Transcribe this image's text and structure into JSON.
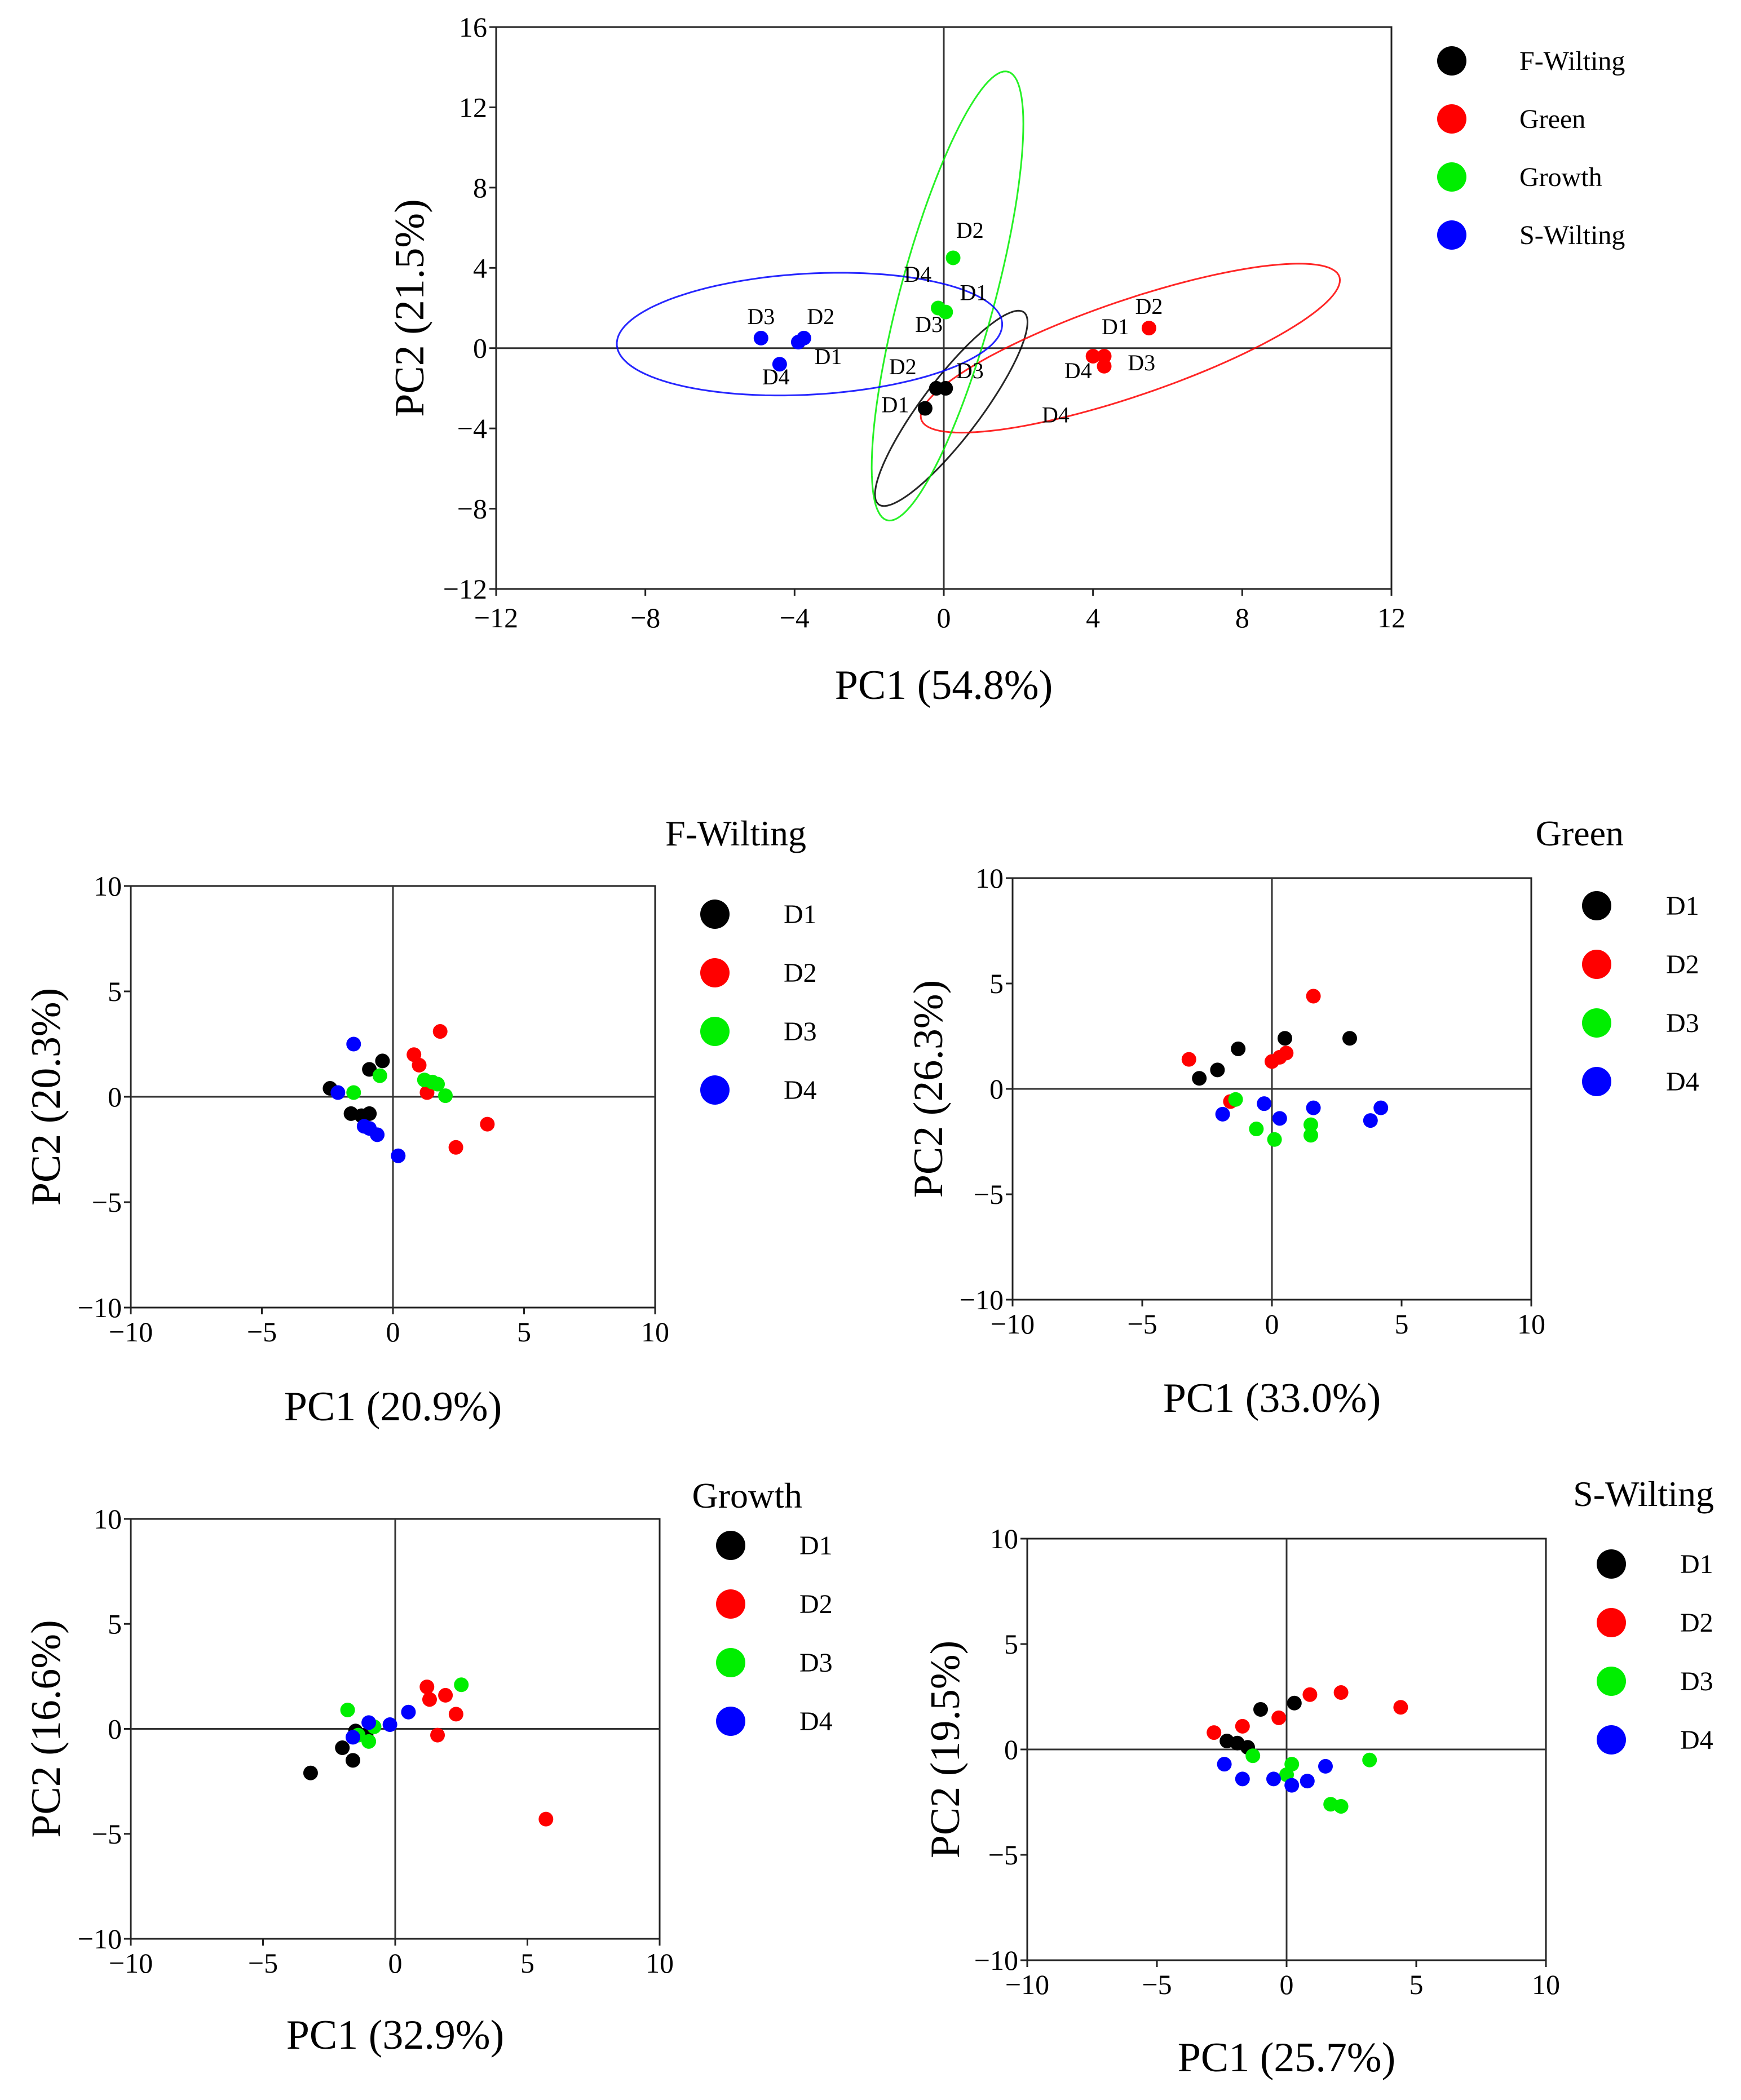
{
  "chart_data": [
    {
      "type": "scatter",
      "title": "",
      "xlabel": "PC1 (54.8%)",
      "ylabel": "PC2 (21.5%)",
      "xlim": [
        -12,
        12
      ],
      "ylim": [
        -12,
        16
      ],
      "xticks": [
        -12,
        -8,
        -4,
        0,
        4,
        8,
        12
      ],
      "yticks": [
        -12,
        -8,
        -4,
        0,
        4,
        8,
        12,
        16
      ],
      "tick_labels_x": [
        "−12",
        "−8",
        "−4",
        "0",
        "4",
        "8",
        "12"
      ],
      "tick_labels_y": [
        "−12",
        "−8",
        "−4",
        "0",
        "4",
        "8",
        "12",
        "16"
      ],
      "zero_lines": true,
      "legend_position": "right",
      "series": [
        {
          "name": "F-Wilting",
          "color": "#000000",
          "points": [
            {
              "x": -0.5,
              "y": -3.0
            },
            {
              "x": -0.2,
              "y": -2.0
            },
            {
              "x": 0.05,
              "y": -2.0
            }
          ],
          "labels": [
            {
              "text": "D1",
              "x": -1.3,
              "y": -3.2
            },
            {
              "text": "D2",
              "x": -1.1,
              "y": -1.3
            },
            {
              "text": "D3",
              "x": 0.7,
              "y": -1.5
            }
          ],
          "ellipse": {
            "cx": 0.2,
            "cy": -3.0,
            "rx": 5.2,
            "ry": 0.9,
            "angle": 69
          }
        },
        {
          "name": "Green",
          "color": "#ff0000",
          "points": [
            {
              "x": 4.0,
              "y": -0.4
            },
            {
              "x": 4.3,
              "y": -0.4
            },
            {
              "x": 4.3,
              "y": -0.9
            },
            {
              "x": 5.5,
              "y": 1.0
            }
          ],
          "labels": [
            {
              "text": "D1",
              "x": 4.6,
              "y": 0.7
            },
            {
              "text": "D2",
              "x": 5.5,
              "y": 1.7
            },
            {
              "text": "D3",
              "x": 5.3,
              "y": -1.1
            },
            {
              "text": "D4",
              "x": 3.6,
              "y": -1.5
            },
            {
              "text": "D4",
              "x": 3.0,
              "y": -3.7
            }
          ],
          "ellipse": {
            "cx": 5.0,
            "cy": 0.0,
            "rx": 6.7,
            "ry": 2.1,
            "angle": 35
          }
        },
        {
          "name": "Growth",
          "color": "#00ee00",
          "points": [
            {
              "x": 0.25,
              "y": 4.5
            },
            {
              "x": -0.15,
              "y": 2.0
            },
            {
              "x": 0.05,
              "y": 1.8
            }
          ],
          "labels": [
            {
              "text": "D2",
              "x": 0.7,
              "y": 5.5
            },
            {
              "text": "D4",
              "x": -0.7,
              "y": 3.3
            },
            {
              "text": "D1",
              "x": 0.8,
              "y": 2.4
            },
            {
              "text": "D3",
              "x": -0.4,
              "y": 0.8
            }
          ],
          "ellipse": {
            "cx": 0.1,
            "cy": 2.6,
            "rx": 11.3,
            "ry": 1.3,
            "angle": 82
          }
        },
        {
          "name": "S-Wilting",
          "color": "#0000ff",
          "points": [
            {
              "x": -4.9,
              "y": 0.5
            },
            {
              "x": -3.9,
              "y": 0.3
            },
            {
              "x": -3.75,
              "y": 0.5
            },
            {
              "x": -4.4,
              "y": -0.8
            }
          ],
          "labels": [
            {
              "text": "D3",
              "x": -4.9,
              "y": 1.2
            },
            {
              "text": "D2",
              "x": -3.3,
              "y": 1.2
            },
            {
              "text": "D1",
              "x": -3.1,
              "y": -0.8
            },
            {
              "text": "D4",
              "x": -4.5,
              "y": -1.8
            }
          ],
          "ellipse": {
            "cx": -3.6,
            "cy": 0.7,
            "rx": 5.2,
            "ry": 3.0,
            "angle": 8
          }
        }
      ]
    },
    {
      "type": "scatter",
      "title": "F-Wilting",
      "xlabel": "PC1 (20.9%)",
      "ylabel": "PC2 (20.3%)",
      "xlim": [
        -10,
        10
      ],
      "ylim": [
        -10,
        10
      ],
      "xticks": [
        -10,
        -5,
        0,
        5,
        10
      ],
      "yticks": [
        -10,
        -5,
        0,
        5,
        10
      ],
      "tick_labels_x": [
        "−10",
        "−5",
        "0",
        "5",
        "10"
      ],
      "tick_labels_y": [
        "−10",
        "−5",
        "0",
        "5",
        "10"
      ],
      "zero_lines": true,
      "legend_position": "right",
      "series": [
        {
          "name": "D1",
          "color": "#000000",
          "points": [
            {
              "x": -2.4,
              "y": 0.4
            },
            {
              "x": -1.6,
              "y": -0.8
            },
            {
              "x": -1.2,
              "y": -0.9
            },
            {
              "x": -0.9,
              "y": -0.8
            },
            {
              "x": -0.9,
              "y": 1.3
            },
            {
              "x": -0.4,
              "y": 1.7
            }
          ]
        },
        {
          "name": "D2",
          "color": "#ff0000",
          "points": [
            {
              "x": 0.8,
              "y": 2.0
            },
            {
              "x": 1.0,
              "y": 1.5
            },
            {
              "x": 1.3,
              "y": 0.2
            },
            {
              "x": 1.8,
              "y": 3.1
            },
            {
              "x": 2.4,
              "y": -2.4
            },
            {
              "x": 3.6,
              "y": -1.3
            }
          ]
        },
        {
          "name": "D3",
          "color": "#00ee00",
          "points": [
            {
              "x": -1.5,
              "y": 0.2
            },
            {
              "x": -0.5,
              "y": 1.0
            },
            {
              "x": 1.2,
              "y": 0.8
            },
            {
              "x": 1.5,
              "y": 0.7
            },
            {
              "x": 1.7,
              "y": 0.6
            },
            {
              "x": 2.0,
              "y": 0.05
            }
          ]
        },
        {
          "name": "D4",
          "color": "#0000ff",
          "points": [
            {
              "x": -2.1,
              "y": 0.2
            },
            {
              "x": -1.5,
              "y": 2.5
            },
            {
              "x": -1.1,
              "y": -1.4
            },
            {
              "x": -0.9,
              "y": -1.5
            },
            {
              "x": -0.6,
              "y": -1.8
            },
            {
              "x": 0.2,
              "y": -2.8
            }
          ]
        }
      ]
    },
    {
      "type": "scatter",
      "title": "Green",
      "xlabel": "PC1 (33.0%)",
      "ylabel": "PC2 (26.3%)",
      "xlim": [
        -10,
        10
      ],
      "ylim": [
        -10,
        10
      ],
      "xticks": [
        -10,
        -5,
        0,
        5,
        10
      ],
      "yticks": [
        -10,
        -5,
        0,
        5,
        10
      ],
      "tick_labels_x": [
        "−10",
        "−5",
        "0",
        "5",
        "10"
      ],
      "tick_labels_y": [
        "−10",
        "−5",
        "0",
        "5",
        "10"
      ],
      "zero_lines": true,
      "legend_position": "right",
      "series": [
        {
          "name": "D1",
          "color": "#000000",
          "points": [
            {
              "x": -2.8,
              "y": 0.5
            },
            {
              "x": -2.1,
              "y": 0.9
            },
            {
              "x": -1.3,
              "y": 1.9
            },
            {
              "x": 0.5,
              "y": 2.4
            },
            {
              "x": 3.0,
              "y": 2.4
            }
          ]
        },
        {
          "name": "D2",
          "color": "#ff0000",
          "points": [
            {
              "x": -3.2,
              "y": 1.4
            },
            {
              "x": 0.0,
              "y": 1.3
            },
            {
              "x": 0.3,
              "y": 1.5
            },
            {
              "x": 0.55,
              "y": 1.7
            },
            {
              "x": 1.6,
              "y": 4.4
            },
            {
              "x": -1.6,
              "y": -0.6
            }
          ]
        },
        {
          "name": "D3",
          "color": "#00ee00",
          "points": [
            {
              "x": -1.4,
              "y": -0.5
            },
            {
              "x": -0.6,
              "y": -1.9
            },
            {
              "x": 0.1,
              "y": -2.4
            },
            {
              "x": 1.5,
              "y": -2.2
            },
            {
              "x": 1.5,
              "y": -1.7
            }
          ]
        },
        {
          "name": "D4",
          "color": "#0000ff",
          "points": [
            {
              "x": -1.9,
              "y": -1.2
            },
            {
              "x": -0.3,
              "y": -0.7
            },
            {
              "x": 0.3,
              "y": -1.4
            },
            {
              "x": 1.6,
              "y": -0.9
            },
            {
              "x": 3.8,
              "y": -1.5
            },
            {
              "x": 4.2,
              "y": -0.9
            }
          ]
        }
      ]
    },
    {
      "type": "scatter",
      "title": "Growth",
      "xlabel": "PC1 (32.9%)",
      "ylabel": "PC2 (16.6%)",
      "xlim": [
        -10,
        10
      ],
      "ylim": [
        -10,
        10
      ],
      "xticks": [
        -10,
        -5,
        0,
        5,
        10
      ],
      "yticks": [
        -10,
        -5,
        0,
        5,
        10
      ],
      "tick_labels_x": [
        "−10",
        "−5",
        "0",
        "5",
        "10"
      ],
      "tick_labels_y": [
        "−10",
        "−5",
        "0",
        "5",
        "10"
      ],
      "zero_lines": true,
      "legend_position": "right",
      "series": [
        {
          "name": "D1",
          "color": "#000000",
          "points": [
            {
              "x": -3.2,
              "y": -2.1
            },
            {
              "x": -2.0,
              "y": -0.9
            },
            {
              "x": -1.6,
              "y": -1.5
            },
            {
              "x": -1.5,
              "y": -0.1
            },
            {
              "x": -1.1,
              "y": -0.3
            }
          ]
        },
        {
          "name": "D2",
          "color": "#ff0000",
          "points": [
            {
              "x": 1.2,
              "y": 2.0
            },
            {
              "x": 1.3,
              "y": 1.4
            },
            {
              "x": 1.9,
              "y": 1.6
            },
            {
              "x": 2.3,
              "y": 0.7
            },
            {
              "x": 1.6,
              "y": -0.3
            },
            {
              "x": 5.7,
              "y": -4.3
            }
          ]
        },
        {
          "name": "D3",
          "color": "#00ee00",
          "points": [
            {
              "x": -1.8,
              "y": 0.9
            },
            {
              "x": -1.4,
              "y": -0.3
            },
            {
              "x": -1.0,
              "y": -0.6
            },
            {
              "x": -0.8,
              "y": 0.1
            },
            {
              "x": 2.5,
              "y": 2.1
            }
          ]
        },
        {
          "name": "D4",
          "color": "#0000ff",
          "points": [
            {
              "x": -1.6,
              "y": -0.4
            },
            {
              "x": -1.0,
              "y": 0.3
            },
            {
              "x": -0.2,
              "y": 0.2
            },
            {
              "x": 0.5,
              "y": 0.8
            }
          ]
        }
      ]
    },
    {
      "type": "scatter",
      "title": "S-Wilting",
      "xlabel": "PC1 (25.7%)",
      "ylabel": "PC2 (19.5%)",
      "xlim": [
        -10,
        10
      ],
      "ylim": [
        -10,
        10
      ],
      "xticks": [
        -10,
        -5,
        0,
        5,
        10
      ],
      "yticks": [
        -10,
        -5,
        0,
        5,
        10
      ],
      "tick_labels_x": [
        "−10",
        "−5",
        "0",
        "5",
        "10"
      ],
      "tick_labels_y": [
        "−10",
        "−5",
        "0",
        "5",
        "10"
      ],
      "zero_lines": true,
      "legend_position": "right",
      "series": [
        {
          "name": "D1",
          "color": "#000000",
          "points": [
            {
              "x": -2.3,
              "y": 0.4
            },
            {
              "x": -1.9,
              "y": 0.3
            },
            {
              "x": -1.5,
              "y": 0.1
            },
            {
              "x": -1.0,
              "y": 1.9
            },
            {
              "x": 0.3,
              "y": 2.2
            }
          ]
        },
        {
          "name": "D2",
          "color": "#ff0000",
          "points": [
            {
              "x": -2.8,
              "y": 0.8
            },
            {
              "x": -1.7,
              "y": 1.1
            },
            {
              "x": -0.3,
              "y": 1.5
            },
            {
              "x": 0.9,
              "y": 2.6
            },
            {
              "x": 2.1,
              "y": 2.7
            },
            {
              "x": 4.4,
              "y": 2.0
            }
          ]
        },
        {
          "name": "D3",
          "color": "#00ee00",
          "points": [
            {
              "x": -1.3,
              "y": -0.3
            },
            {
              "x": 0.0,
              "y": -1.2
            },
            {
              "x": 0.2,
              "y": -0.7
            },
            {
              "x": 1.7,
              "y": -2.6
            },
            {
              "x": 2.1,
              "y": -2.7
            },
            {
              "x": 3.2,
              "y": -0.5
            }
          ]
        },
        {
          "name": "D4",
          "color": "#0000ff",
          "points": [
            {
              "x": -2.4,
              "y": -0.7
            },
            {
              "x": -1.7,
              "y": -1.4
            },
            {
              "x": -0.5,
              "y": -1.4
            },
            {
              "x": 0.2,
              "y": -1.7
            },
            {
              "x": 0.8,
              "y": -1.5
            },
            {
              "x": 1.5,
              "y": -0.8
            }
          ]
        }
      ]
    }
  ]
}
